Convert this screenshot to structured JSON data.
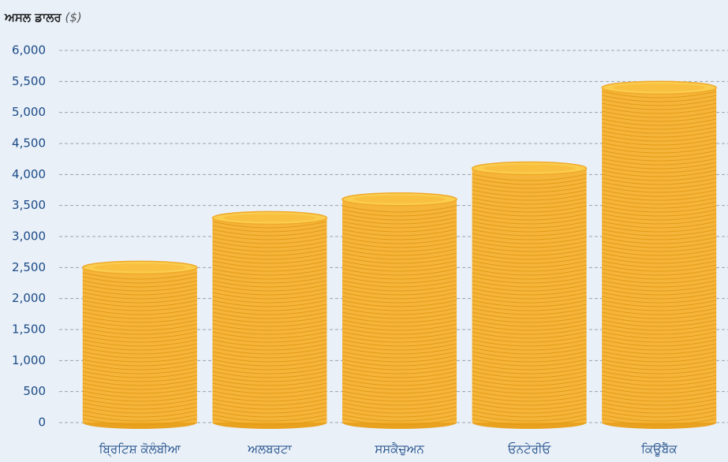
{
  "chart_data": {
    "type": "bar",
    "title": "ਅਸਲ ਡਾਲਰ",
    "unit": "($)",
    "categories": [
      "ਬ੍ਰਿਟਿਸ਼ ਕੋਲੰਬੀਆ",
      "ਅਲਬਰਟਾ",
      "ਸਸਕੈਚੁਅਨ",
      "ਓਨਟੇਰੀਓ",
      "ਕਿਊਬੈੱਕ"
    ],
    "values": [
      2500,
      3300,
      3600,
      4100,
      5400
    ],
    "color": "#f5b53a",
    "ylim": [
      0,
      6000
    ],
    "yticks": [
      0,
      500,
      {
        "value": 1000,
        "label": "1,000"
      },
      {
        "value": 1500,
        "label": "1,500"
      },
      {
        "value": 2000,
        "label": "2,000"
      },
      {
        "value": 2500,
        "label": "2,500"
      },
      {
        "value": 3000,
        "label": "3,000"
      },
      {
        "value": 3500,
        "label": "3,500"
      },
      {
        "value": 4000,
        "label": "4,000"
      },
      {
        "value": 4500,
        "label": "4,500"
      },
      {
        "value": 5000,
        "label": "5,000"
      },
      {
        "value": 5500,
        "label": "5,500"
      },
      {
        "value": 6000,
        "label": "6,000"
      }
    ],
    "grid": true
  }
}
